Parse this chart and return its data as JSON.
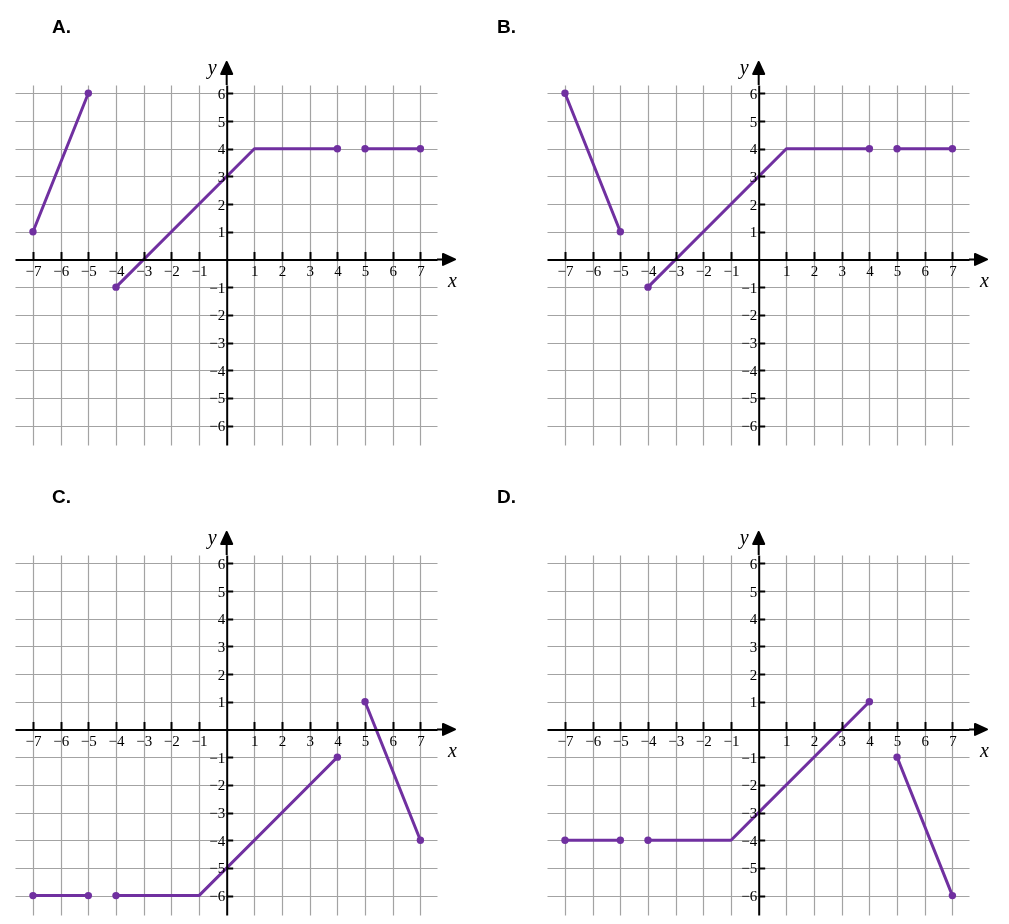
{
  "chart_data": [
    {
      "type": "line",
      "title": "A.",
      "xlabel": "x",
      "ylabel": "y",
      "xlim": [
        -7.65,
        7.6
      ],
      "ylim": [
        -6.7,
        6.3
      ],
      "xticks": [
        {
          "value": -7,
          "label": "−7"
        },
        {
          "value": -6,
          "label": "−6"
        },
        {
          "value": -5,
          "label": "−5"
        },
        {
          "value": -4,
          "label": "−4"
        },
        {
          "value": -3,
          "label": "−3"
        },
        {
          "value": -2,
          "label": "−2"
        },
        {
          "value": -1,
          "label": "−1"
        },
        1,
        2,
        3,
        4,
        5,
        6,
        7
      ],
      "yticks": [
        {
          "value": -6,
          "label": "−6"
        },
        {
          "value": -5,
          "label": "−5"
        },
        {
          "value": -4,
          "label": "−4"
        },
        {
          "value": -3,
          "label": "−3"
        },
        {
          "value": -2,
          "label": "−2"
        },
        {
          "value": -1,
          "label": "−1"
        },
        1,
        2,
        3,
        4,
        5,
        6
      ],
      "grid": true,
      "series": [
        {
          "type": "line",
          "color": "#7030a0",
          "x": [
            -7,
            -5
          ],
          "values": [
            1,
            6
          ]
        },
        {
          "type": "line",
          "color": "#7030a0",
          "x": [
            -4,
            1,
            4
          ],
          "values": [
            -1,
            4,
            4
          ]
        },
        {
          "type": "line",
          "color": "#7030a0",
          "x": [
            5,
            7
          ],
          "values": [
            4,
            4
          ]
        },
        {
          "type": "scatter",
          "color": "#7030a0",
          "marker": "circle",
          "x": [
            -7,
            -5,
            -4,
            4,
            5,
            7
          ],
          "values": [
            1,
            6,
            -1,
            4,
            4,
            4
          ]
        }
      ]
    },
    {
      "type": "line",
      "title": "B.",
      "xlabel": "x",
      "ylabel": "y",
      "xlim": [
        -7.65,
        7.6
      ],
      "ylim": [
        -6.7,
        6.3
      ],
      "xticks": [
        {
          "value": -7,
          "label": "−7"
        },
        {
          "value": -6,
          "label": "−6"
        },
        {
          "value": -5,
          "label": "−5"
        },
        {
          "value": -4,
          "label": "−4"
        },
        {
          "value": -3,
          "label": "−3"
        },
        {
          "value": -2,
          "label": "−2"
        },
        {
          "value": -1,
          "label": "−1"
        },
        1,
        2,
        3,
        4,
        5,
        6,
        7
      ],
      "yticks": [
        {
          "value": -6,
          "label": "−6"
        },
        {
          "value": -5,
          "label": "−5"
        },
        {
          "value": -4,
          "label": "−4"
        },
        {
          "value": -3,
          "label": "−3"
        },
        {
          "value": -2,
          "label": "−2"
        },
        {
          "value": -1,
          "label": "−1"
        },
        1,
        2,
        3,
        4,
        5,
        6
      ],
      "grid": true,
      "series": [
        {
          "type": "line",
          "color": "#7030a0",
          "x": [
            -7,
            -5
          ],
          "values": [
            6,
            1
          ]
        },
        {
          "type": "line",
          "color": "#7030a0",
          "x": [
            -4,
            1,
            4
          ],
          "values": [
            -1,
            4,
            4
          ]
        },
        {
          "type": "line",
          "color": "#7030a0",
          "x": [
            5,
            7
          ],
          "values": [
            4,
            4
          ]
        },
        {
          "type": "scatter",
          "color": "#7030a0",
          "marker": "circle",
          "x": [
            -7,
            -5,
            -4,
            4,
            5,
            7
          ],
          "values": [
            6,
            1,
            -1,
            4,
            4,
            4
          ]
        }
      ]
    },
    {
      "type": "line",
      "title": "C.",
      "xlabel": "x",
      "ylabel": "y",
      "xlim": [
        -7.65,
        7.6
      ],
      "ylim": [
        -6.7,
        6.3
      ],
      "xticks": [
        {
          "value": -7,
          "label": "−7"
        },
        {
          "value": -6,
          "label": "−6"
        },
        {
          "value": -5,
          "label": "−5"
        },
        {
          "value": -4,
          "label": "−4"
        },
        {
          "value": -3,
          "label": "−3"
        },
        {
          "value": -2,
          "label": "−2"
        },
        {
          "value": -1,
          "label": "−1"
        },
        1,
        2,
        3,
        4,
        5,
        6,
        7
      ],
      "yticks": [
        {
          "value": -6,
          "label": "−6"
        },
        {
          "value": -5,
          "label": "−5"
        },
        {
          "value": -4,
          "label": "−4"
        },
        {
          "value": -3,
          "label": "−3"
        },
        {
          "value": -2,
          "label": "−2"
        },
        {
          "value": -1,
          "label": "−1"
        },
        1,
        2,
        3,
        4,
        5,
        6
      ],
      "grid": true,
      "series": [
        {
          "type": "line",
          "color": "#7030a0",
          "x": [
            -7,
            -5
          ],
          "values": [
            -6,
            -6
          ]
        },
        {
          "type": "line",
          "color": "#7030a0",
          "x": [
            -4,
            -1,
            4
          ],
          "values": [
            -6,
            -6,
            -1
          ]
        },
        {
          "type": "line",
          "color": "#7030a0",
          "x": [
            5,
            7
          ],
          "values": [
            1,
            -4
          ]
        },
        {
          "type": "scatter",
          "color": "#7030a0",
          "marker": "circle",
          "x": [
            -7,
            -5,
            -4,
            4,
            5,
            7
          ],
          "values": [
            -6,
            -6,
            -6,
            -1,
            1,
            -4
          ]
        }
      ]
    },
    {
      "type": "line",
      "title": "D.",
      "xlabel": "x",
      "ylabel": "y",
      "xlim": [
        -7.65,
        7.6
      ],
      "ylim": [
        -6.7,
        6.3
      ],
      "xticks": [
        {
          "value": -7,
          "label": "−7"
        },
        {
          "value": -6,
          "label": "−6"
        },
        {
          "value": -5,
          "label": "−5"
        },
        {
          "value": -4,
          "label": "−4"
        },
        {
          "value": -3,
          "label": "−3"
        },
        {
          "value": -2,
          "label": "−2"
        },
        {
          "value": -1,
          "label": "−1"
        },
        1,
        2,
        3,
        4,
        5,
        6,
        7
      ],
      "yticks": [
        {
          "value": -6,
          "label": "−6"
        },
        {
          "value": -5,
          "label": "−5"
        },
        {
          "value": -4,
          "label": "−4"
        },
        {
          "value": -3,
          "label": "−3"
        },
        {
          "value": -2,
          "label": "−2"
        },
        {
          "value": -1,
          "label": "−1"
        },
        1,
        2,
        3,
        4,
        5,
        6
      ],
      "grid": true,
      "series": [
        {
          "type": "line",
          "color": "#7030a0",
          "x": [
            -7,
            -5
          ],
          "values": [
            -4,
            -4
          ]
        },
        {
          "type": "line",
          "color": "#7030a0",
          "x": [
            -4,
            -1,
            4
          ],
          "values": [
            -4,
            -4,
            1
          ]
        },
        {
          "type": "line",
          "color": "#7030a0",
          "x": [
            5,
            7
          ],
          "values": [
            -1,
            -6
          ]
        },
        {
          "type": "scatter",
          "color": "#7030a0",
          "marker": "circle",
          "x": [
            -7,
            -5,
            -4,
            4,
            5,
            7
          ],
          "values": [
            -4,
            -4,
            -4,
            1,
            -1,
            -6
          ]
        }
      ]
    }
  ]
}
